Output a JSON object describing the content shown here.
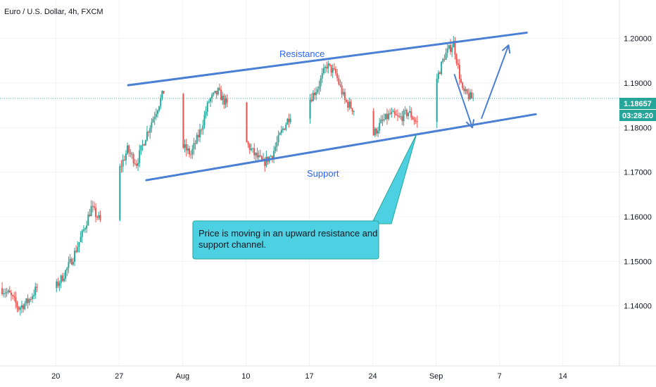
{
  "chart_data": {
    "type": "candlestick",
    "title": "Euro / U.S. Dollar, 4h, FXCM",
    "symbol": "EURUSD",
    "interval": "4h",
    "source": "FXCM",
    "ylim": [
      1.13,
      1.205
    ],
    "yticks": [
      1.14,
      1.15,
      1.16,
      1.17,
      1.18,
      1.19,
      1.2
    ],
    "ytick_labels": [
      "1.14000",
      "1.15000",
      "1.16000",
      "1.17000",
      "1.18000",
      "1.19000",
      "1.20000"
    ],
    "xlim": [
      "2020-07-14",
      "2020-09-20"
    ],
    "xticks": [
      {
        "date": "2020-07-20",
        "label": "20"
      },
      {
        "date": "2020-07-27",
        "label": "27"
      },
      {
        "date": "2020-08-03",
        "label": "Aug"
      },
      {
        "date": "2020-08-10",
        "label": "10"
      },
      {
        "date": "2020-08-17",
        "label": "17"
      },
      {
        "date": "2020-08-24",
        "label": "24"
      },
      {
        "date": "2020-08-31",
        "label": "Sep"
      },
      {
        "date": "2020-09-07",
        "label": "7"
      },
      {
        "date": "2020-09-14",
        "label": "14"
      }
    ],
    "path": [
      [
        "2020-07-14",
        1.144
      ],
      [
        "2020-07-15",
        1.1425
      ],
      [
        "2020-07-16",
        1.1395
      ],
      [
        "2020-07-17",
        1.141
      ],
      [
        "2020-07-18",
        1.144
      ],
      [
        "2020-07-19",
        1.145
      ],
      [
        "2020-07-20",
        1.144
      ],
      [
        "2020-07-21",
        1.147
      ],
      [
        "2020-07-22",
        1.151
      ],
      [
        "2020-07-23",
        1.156
      ],
      [
        "2020-07-24",
        1.162
      ],
      [
        "2020-07-25",
        1.159
      ],
      [
        "2020-07-26",
        1.164
      ],
      [
        "2020-07-27",
        1.17
      ],
      [
        "2020-07-28",
        1.175
      ],
      [
        "2020-07-29",
        1.172
      ],
      [
        "2020-07-30",
        1.178
      ],
      [
        "2020-07-31",
        1.183
      ],
      [
        "2020-08-01",
        1.188
      ],
      [
        "2020-08-02",
        1.182
      ],
      [
        "2020-08-03",
        1.176
      ],
      [
        "2020-08-04",
        1.174
      ],
      [
        "2020-08-05",
        1.179
      ],
      [
        "2020-08-06",
        1.186
      ],
      [
        "2020-08-07",
        1.188
      ],
      [
        "2020-08-08",
        1.185
      ],
      [
        "2020-08-09",
        1.18
      ],
      [
        "2020-08-10",
        1.177
      ],
      [
        "2020-08-11",
        1.174
      ],
      [
        "2020-08-12",
        1.172
      ],
      [
        "2020-08-13",
        1.174
      ],
      [
        "2020-08-14",
        1.179
      ],
      [
        "2020-08-15",
        1.183
      ],
      [
        "2020-08-16",
        1.185
      ],
      [
        "2020-08-17",
        1.186
      ],
      [
        "2020-08-18",
        1.189
      ],
      [
        "2020-08-19",
        1.194
      ],
      [
        "2020-08-20",
        1.192
      ],
      [
        "2020-08-21",
        1.186
      ],
      [
        "2020-08-22",
        1.184
      ],
      [
        "2020-08-23",
        1.181
      ],
      [
        "2020-08-24",
        1.178
      ],
      [
        "2020-08-25",
        1.181
      ],
      [
        "2020-08-26",
        1.183
      ],
      [
        "2020-08-27",
        1.182
      ],
      [
        "2020-08-28",
        1.1835
      ],
      [
        "2020-08-29",
        1.181
      ],
      [
        "2020-08-30",
        1.183
      ],
      [
        "2020-08-31",
        1.19
      ],
      [
        "2020-09-01",
        1.196
      ],
      [
        "2020-09-02",
        1.199
      ],
      [
        "2020-09-03",
        1.188
      ],
      [
        "2020-09-04",
        1.1866
      ]
    ],
    "current_price": {
      "value": 1.18657,
      "label": "1.18657",
      "countdown": "03:28:20"
    },
    "annotations": {
      "resistance_label": "Resistance",
      "support_label": "Support",
      "callout": "Price is moving in an upward resistance and support channel."
    },
    "trendlines": [
      {
        "start": [
          "2020-07-28",
          1.1895
        ],
        "end": [
          "2020-09-10",
          1.2013
        ]
      },
      {
        "start": [
          "2020-07-30",
          1.1682
        ],
        "end": [
          "2020-09-11",
          1.183
        ]
      }
    ],
    "arrows": [
      {
        "from": [
          "2020-09-02",
          1.192
        ],
        "to": [
          "2020-09-04",
          1.18
        ]
      },
      {
        "from": [
          "2020-09-05",
          1.182
        ],
        "to": [
          "2020-09-08",
          1.1985
        ]
      }
    ],
    "colors": {
      "up": "#26a69a",
      "down": "#ef5350",
      "trendline": "#4a7fd4",
      "label": "#2962ff",
      "price_tag": "#26a69a",
      "callout_fill": "#4dd0e1",
      "callout_border": "#26a69a",
      "grid": "#f0f3fa",
      "axis_line": "#e0e3eb"
    }
  }
}
